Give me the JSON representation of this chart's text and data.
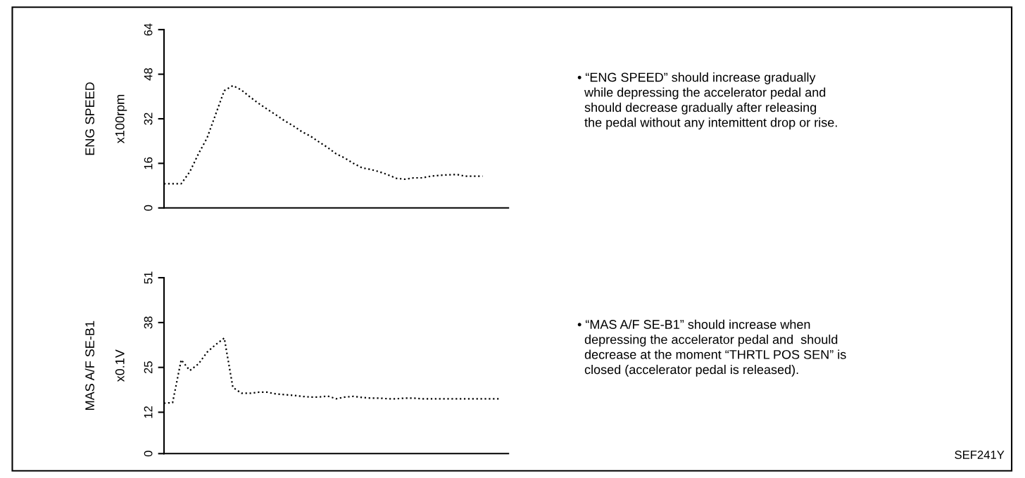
{
  "chart_data": [
    {
      "type": "line",
      "ylabel": "ENG SPEED",
      "annotations": [
        "x100rpm",
        "• “ENG SPEED” should increase gradually\n  while depressing the accelerator pedal and\n  should decrease gradually after releasing\n  the pedal without any intemittent drop or rise."
      ],
      "categories": [
        null,
        null,
        null,
        null,
        null,
        null,
        null,
        null,
        null,
        null,
        null,
        null,
        null,
        null,
        null,
        null,
        null,
        null,
        null,
        null,
        null,
        null,
        null,
        null,
        null,
        null,
        null,
        null,
        null,
        null,
        null,
        null,
        null,
        null,
        null,
        null,
        null,
        null,
        null,
        null,
        null
      ],
      "series": [
        {
          "color": "#000000",
          "values": [
            8.7,
            8.7,
            8.7,
            13.0,
            19.4,
            25.1,
            33.6,
            42.1,
            43.9,
            42.3,
            39.8,
            37.5,
            35.4,
            33.4,
            31.3,
            29.5,
            27.4,
            25.8,
            23.7,
            21.7,
            19.4,
            17.9,
            16.0,
            14.4,
            13.8,
            13.0,
            11.9,
            10.6,
            10.3,
            10.8,
            10.8,
            11.4,
            11.7,
            11.9,
            12.0,
            11.4,
            11.4,
            11.4,
            null,
            null,
            null
          ]
        }
      ],
      "ylim": [
        0,
        64
      ],
      "yticks": [
        0,
        16,
        32,
        48,
        64
      ],
      "tick_labels": "y",
      "line_style": "dotted",
      "marker": "none"
    },
    {
      "type": "line",
      "ylabel": "MAS A/F SE-B1",
      "annotations": [
        "x0.1V",
        "• “MAS A/F SE-B1” should increase when\n  depressing the accelerator pedal and  should\n  decrease at the moment “THRTL POS SEN” is\n  closed (accelerator pedal is released).",
        "SEF241Y"
      ],
      "categories": [
        null,
        null,
        null,
        null,
        null,
        null,
        null,
        null,
        null,
        null,
        null,
        null,
        null,
        null,
        null,
        null,
        null,
        null,
        null,
        null,
        null,
        null,
        null,
        null,
        null,
        null,
        null,
        null,
        null,
        null,
        null,
        null,
        null,
        null,
        null,
        null,
        null,
        null,
        null,
        null,
        null
      ],
      "series": [
        {
          "color": "#000000",
          "values": [
            14.6,
            14.8,
            27.2,
            24.1,
            26.0,
            29.4,
            31.6,
            33.5,
            19.2,
            17.5,
            17.5,
            17.8,
            17.8,
            17.3,
            17.1,
            16.9,
            16.6,
            16.4,
            16.4,
            16.7,
            15.9,
            16.4,
            16.6,
            16.3,
            16.1,
            16.1,
            15.9,
            15.9,
            16.1,
            16.1,
            15.9,
            15.9,
            15.9,
            15.9,
            15.9,
            15.9,
            15.9,
            15.9,
            15.9,
            15.9,
            null
          ]
        }
      ],
      "ylim": [
        0,
        51
      ],
      "yticks": [
        0,
        12,
        25,
        38,
        51
      ],
      "tick_labels": "y",
      "line_style": "dotted",
      "marker": "none"
    }
  ]
}
